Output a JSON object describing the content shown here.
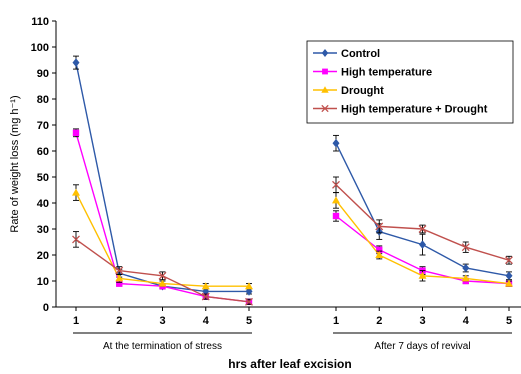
{
  "chart_data": {
    "type": "line",
    "ylabel": "Rate of weight loss (mg h⁻¹)",
    "xlabel": "hrs after leaf excision",
    "ylim": [
      0,
      110
    ],
    "yticks": [
      0,
      10,
      20,
      30,
      40,
      50,
      60,
      70,
      80,
      90,
      100,
      110
    ],
    "legend_position": "top-right",
    "groups": [
      {
        "label": "At the termination of stress",
        "x": [
          1,
          2,
          3,
          4,
          5
        ]
      },
      {
        "label": "After 7 days of revival",
        "x": [
          1,
          2,
          3,
          4,
          5
        ]
      }
    ],
    "series": [
      {
        "name": "Control",
        "color": "#2e59a8",
        "marker": "diamond",
        "values": [
          [
            94,
            13,
            8,
            6,
            6
          ],
          [
            63,
            29,
            24,
            15,
            12
          ]
        ],
        "errors": [
          [
            2.5,
            1.5,
            1,
            1,
            1
          ],
          [
            3,
            3,
            4,
            1.5,
            1.5
          ]
        ]
      },
      {
        "name": "High temperature",
        "color": "#ff00ff",
        "marker": "square",
        "values": [
          [
            67,
            9,
            8,
            4,
            2
          ],
          [
            35,
            22,
            14,
            10,
            9
          ]
        ],
        "errors": [
          [
            1.5,
            1,
            1,
            1,
            1
          ],
          [
            2,
            1.5,
            1.5,
            1,
            1
          ]
        ]
      },
      {
        "name": "Drought",
        "color": "#ffc000",
        "marker": "triangle",
        "values": [
          [
            44,
            11,
            9,
            8,
            8
          ],
          [
            41,
            20,
            12,
            11,
            9
          ]
        ],
        "errors": [
          [
            3,
            1.5,
            1,
            1,
            1
          ],
          [
            3,
            1.5,
            2,
            1,
            1
          ]
        ]
      },
      {
        "name": "High temperature + Drought",
        "color": "#c0504d",
        "marker": "x",
        "values": [
          [
            26,
            14,
            12,
            4,
            2
          ],
          [
            47,
            31,
            30,
            23,
            18
          ]
        ],
        "errors": [
          [
            3,
            1.5,
            1.5,
            1,
            1
          ],
          [
            3,
            2.5,
            1.5,
            2,
            1.5
          ]
        ]
      }
    ]
  }
}
